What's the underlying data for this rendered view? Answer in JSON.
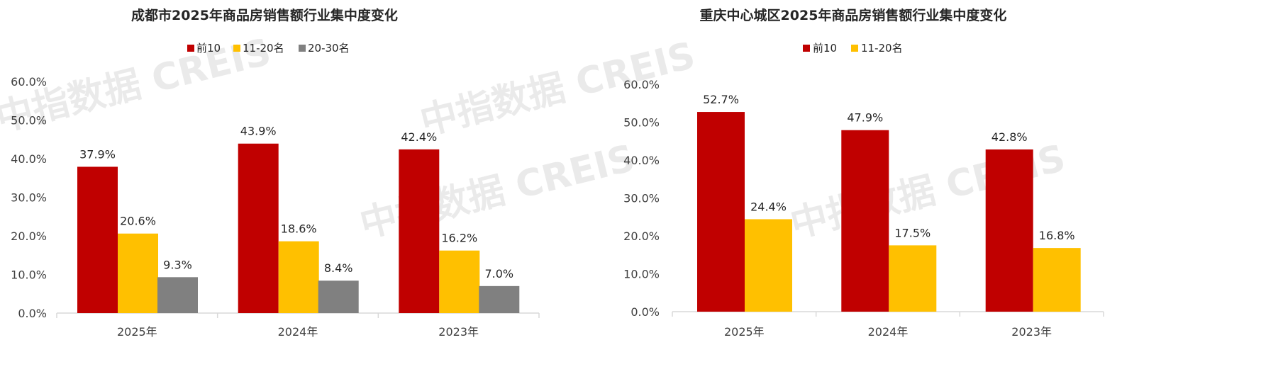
{
  "watermark": "中指数据 CREIS",
  "chart_data": [
    {
      "type": "bar",
      "title": "成都市2025年商品房销售额行业集中度变化",
      "categories": [
        "2025年",
        "2024年",
        "2023年"
      ],
      "series": [
        {
          "name": "前10",
          "color": "#c00000",
          "values": [
            37.9,
            43.9,
            42.4
          ]
        },
        {
          "name": "11-20名",
          "color": "#ffc000",
          "values": [
            20.6,
            18.6,
            16.2
          ]
        },
        {
          "name": "20-30名",
          "color": "#808080",
          "values": [
            9.3,
            8.4,
            7.0
          ]
        }
      ],
      "value_format": "percent_1dp",
      "ylim": [
        0,
        60
      ],
      "yticks": [
        "0.0%",
        "10.0%",
        "20.0%",
        "30.0%",
        "40.0%",
        "50.0%",
        "60.0%"
      ],
      "legend": "top-center",
      "grid": false
    },
    {
      "type": "bar",
      "title": "重庆中心城区2025年商品房销售额行业集中度变化",
      "categories": [
        "2025年",
        "2024年",
        "2023年"
      ],
      "series": [
        {
          "name": "前10",
          "color": "#c00000",
          "values": [
            52.7,
            47.9,
            42.8
          ]
        },
        {
          "name": "11-20名",
          "color": "#ffc000",
          "values": [
            24.4,
            17.5,
            16.8
          ]
        }
      ],
      "value_format": "percent_1dp",
      "ylim": [
        0,
        60
      ],
      "yticks": [
        "0.0%",
        "10.0%",
        "20.0%",
        "30.0%",
        "40.0%",
        "50.0%",
        "60.0%"
      ],
      "legend": "top-center",
      "grid": false
    }
  ]
}
